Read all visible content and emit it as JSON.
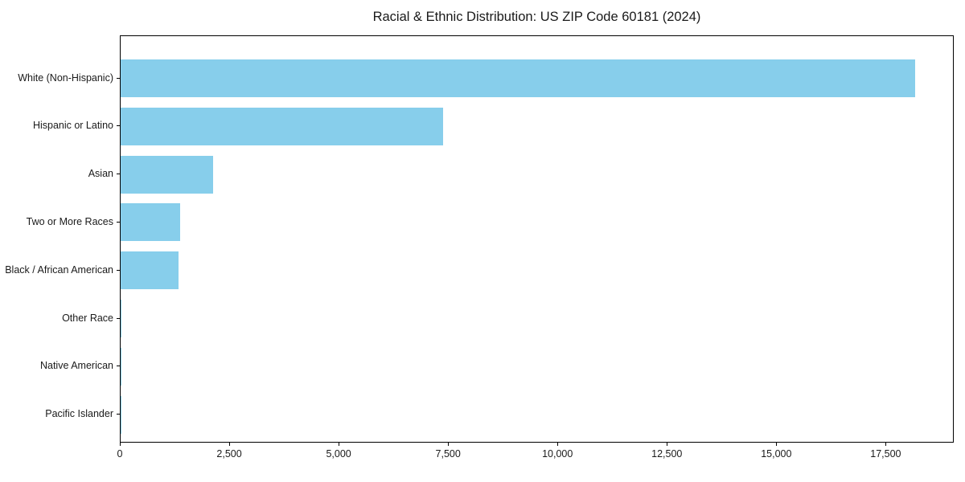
{
  "chart_data": {
    "type": "bar",
    "orientation": "horizontal",
    "title": "Racial & Ethnic Distribution: US ZIP Code 60181 (2024)",
    "xlabel": "",
    "ylabel": "",
    "categories": [
      "White (Non-Hispanic)",
      "Hispanic or Latino",
      "Asian",
      "Two or More Races",
      "Black / African American",
      "Other Race",
      "Native American",
      "Pacific Islander"
    ],
    "values": [
      18150,
      7370,
      2115,
      1355,
      1325,
      25,
      10,
      5
    ],
    "xlim": [
      0,
      19055
    ],
    "x_ticks": [
      {
        "value": 0,
        "label": "0"
      },
      {
        "value": 2500,
        "label": "2,500"
      },
      {
        "value": 5000,
        "label": "5,000"
      },
      {
        "value": 7500,
        "label": "7,500"
      },
      {
        "value": 10000,
        "label": "10,000"
      },
      {
        "value": 12500,
        "label": "12,500"
      },
      {
        "value": 15000,
        "label": "15,000"
      },
      {
        "value": 17500,
        "label": "17,500"
      }
    ],
    "grid": false,
    "legend": "none",
    "bar_color": "#87CEEB",
    "axis_color": "#000000",
    "text_color": "#1a1a1a"
  }
}
